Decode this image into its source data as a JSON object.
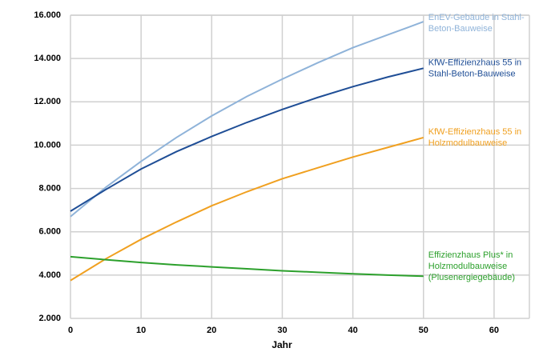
{
  "chart_data": {
    "type": "line",
    "x_label": "Jahr",
    "x": [
      0,
      5,
      10,
      15,
      20,
      25,
      30,
      35,
      40,
      45,
      50
    ],
    "series": [
      {
        "name": "EnEV-Gebäude in Stahl-\nBeton-Bauweise",
        "color": "#8fb3d9",
        "values": [
          6700,
          8050,
          9250,
          10350,
          11350,
          12250,
          13050,
          13800,
          14500,
          15100,
          15700
        ]
      },
      {
        "name": "KfW-Effizienzhaus 55 in\nStahl-Beton-Bauweise",
        "color": "#1f4e96",
        "values": [
          6950,
          7950,
          8900,
          9700,
          10400,
          11050,
          11650,
          12200,
          12700,
          13150,
          13550
        ]
      },
      {
        "name": "KfW-Effizienzhaus 55 in\nHolzmodulbauweise",
        "color": "#f0a020",
        "values": [
          3750,
          4750,
          5650,
          6450,
          7200,
          7850,
          8450,
          8950,
          9450,
          9900,
          10350
        ]
      },
      {
        "name": "Effizienzhaus Plus* in\nHolzmodulbauweise\n(Plusenergiegebäude)",
        "color": "#2ca02c",
        "values": [
          4850,
          4710,
          4580,
          4470,
          4380,
          4290,
          4200,
          4130,
          4060,
          4000,
          3950
        ]
      }
    ],
    "xlim": [
      0,
      65
    ],
    "xticks": [
      0,
      10,
      20,
      30,
      40,
      50,
      60
    ],
    "ylim": [
      2000,
      16000
    ],
    "yticks": [
      {
        "value": 2000,
        "label": "2.000"
      },
      {
        "value": 4000,
        "label": "4.000"
      },
      {
        "value": 6000,
        "label": "6.000"
      },
      {
        "value": 8000,
        "label": "8.000"
      },
      {
        "value": 10000,
        "label": "10.000"
      },
      {
        "value": 12000,
        "label": "12.000"
      },
      {
        "value": 14000,
        "label": "14.000"
      },
      {
        "value": 16000,
        "label": "16.000"
      }
    ],
    "grid": true
  }
}
